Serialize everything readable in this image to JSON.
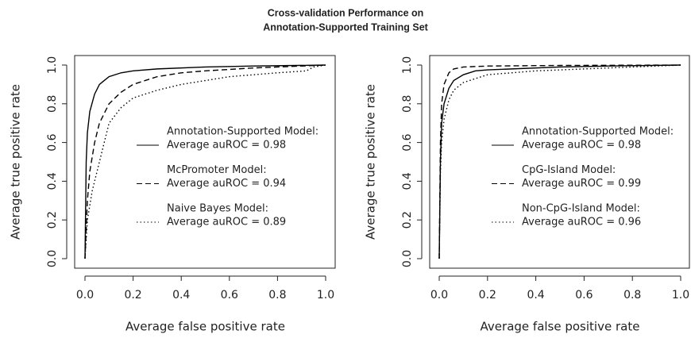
{
  "title": [
    "Cross-validation Performance on",
    "Annotation-Supported Training Set"
  ],
  "chart_data": [
    {
      "type": "line",
      "xlabel": "Average false positive rate",
      "ylabel": "Average true positive rate",
      "xlim": [
        0,
        1
      ],
      "ylim": [
        0,
        1
      ],
      "xticks": [
        {
          "value": 0,
          "label": "0.0"
        },
        0.2,
        0.4,
        0.6,
        0.8,
        {
          "value": 1,
          "label": "1.0"
        }
      ],
      "yticks": [
        {
          "value": 0,
          "label": "0.0"
        },
        0.2,
        0.4,
        0.6,
        0.8,
        {
          "value": 1,
          "label": "1.0"
        }
      ],
      "series": [
        {
          "name": "Annotation-Supported Model:",
          "legend_note": "Average auROC = 0.98",
          "color": "#000000",
          "linestyle": "solid",
          "x": [
            0,
            0.005,
            0.01,
            0.02,
            0.04,
            0.06,
            0.1,
            0.15,
            0.2,
            0.3,
            0.5,
            0.7,
            1.0
          ],
          "values": [
            0,
            0.5,
            0.65,
            0.76,
            0.85,
            0.9,
            0.94,
            0.96,
            0.97,
            0.98,
            0.99,
            0.995,
            1.0
          ]
        },
        {
          "name": "McPromoter Model:",
          "legend_note": "Average auROC = 0.94",
          "color": "#000000",
          "linestyle": "dashed",
          "x": [
            0,
            0.01,
            0.02,
            0.04,
            0.06,
            0.1,
            0.15,
            0.2,
            0.3,
            0.4,
            0.5,
            0.7,
            0.9,
            1.0
          ],
          "values": [
            0,
            0.3,
            0.45,
            0.6,
            0.7,
            0.8,
            0.86,
            0.9,
            0.94,
            0.96,
            0.97,
            0.985,
            0.995,
            1.0
          ]
        },
        {
          "name": "Naive Bayes Model:",
          "legend_note": "Average auROC = 0.89",
          "color": "#000000",
          "linestyle": "dotted",
          "x": [
            0,
            0.01,
            0.03,
            0.05,
            0.08,
            0.1,
            0.15,
            0.2,
            0.3,
            0.4,
            0.5,
            0.6,
            0.8,
            0.92,
            0.95,
            1.0
          ],
          "values": [
            0,
            0.2,
            0.35,
            0.45,
            0.6,
            0.7,
            0.78,
            0.83,
            0.87,
            0.9,
            0.92,
            0.94,
            0.96,
            0.97,
            0.99,
            1.0
          ]
        }
      ]
    },
    {
      "type": "line",
      "xlabel": "Average false positive rate",
      "ylabel": "Average true positive rate",
      "xlim": [
        0,
        1
      ],
      "ylim": [
        0,
        1
      ],
      "xticks": [
        {
          "value": 0,
          "label": "0.0"
        },
        0.2,
        0.4,
        0.6,
        0.8,
        {
          "value": 1,
          "label": "1.0"
        }
      ],
      "yticks": [
        {
          "value": 0,
          "label": "0.0"
        },
        0.2,
        0.4,
        0.6,
        0.8,
        {
          "value": 1,
          "label": "1.0"
        }
      ],
      "series": [
        {
          "name": "Annotation-Supported Model:",
          "legend_note": "Average auROC = 0.98",
          "color": "#000000",
          "linestyle": "solid",
          "x": [
            0,
            0.005,
            0.01,
            0.02,
            0.04,
            0.06,
            0.1,
            0.15,
            0.2,
            0.3,
            0.5,
            0.7,
            1.0
          ],
          "values": [
            0,
            0.5,
            0.7,
            0.8,
            0.88,
            0.92,
            0.95,
            0.97,
            0.975,
            0.98,
            0.99,
            0.995,
            1.0
          ]
        },
        {
          "name": "CpG-Island Model:",
          "legend_note": "Average auROC = 0.99",
          "color": "#000000",
          "linestyle": "dashed",
          "x": [
            0,
            0.005,
            0.01,
            0.02,
            0.04,
            0.06,
            0.1,
            0.2,
            0.5,
            1.0
          ],
          "values": [
            0,
            0.6,
            0.8,
            0.9,
            0.96,
            0.98,
            0.99,
            0.995,
            0.998,
            1.0
          ]
        },
        {
          "name": "Non-CpG-Island Model:",
          "legend_note": "Average auROC = 0.96",
          "color": "#000000",
          "linestyle": "dotted",
          "x": [
            0,
            0.005,
            0.01,
            0.02,
            0.04,
            0.06,
            0.1,
            0.15,
            0.2,
            0.3,
            0.4,
            0.5,
            0.7,
            1.0
          ],
          "values": [
            0,
            0.45,
            0.6,
            0.72,
            0.82,
            0.87,
            0.91,
            0.93,
            0.95,
            0.96,
            0.97,
            0.975,
            0.985,
            1.0
          ]
        }
      ]
    }
  ]
}
